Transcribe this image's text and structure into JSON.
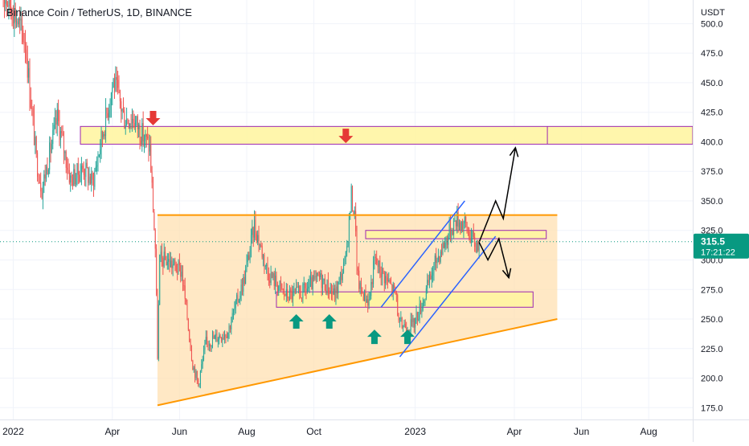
{
  "header": {
    "title": "Binance Coin / TetherUS, 1D, BINANCE"
  },
  "price_axis": {
    "currency": "USDT",
    "ticks": [
      "500.0",
      "475.0",
      "450.0",
      "425.0",
      "400.0",
      "375.0",
      "350.0",
      "325.0",
      "300.0",
      "275.0",
      "250.0",
      "225.0",
      "200.0",
      "175.0"
    ]
  },
  "time_axis": {
    "ticks": [
      "2022",
      "Apr",
      "Jun",
      "Aug",
      "Oct",
      "2023",
      "Apr",
      "Jun",
      "Aug"
    ]
  },
  "last_price": {
    "value": "315.5",
    "countdown": "17:21:22"
  },
  "colors": {
    "up": "#26a69a",
    "down": "#ef5350",
    "zone_fill": "#fff59d",
    "zone_border": "#9c27b0",
    "triangle_fill": "#ffe0b2",
    "triangle_line": "#ff9800",
    "channel": "#2962ff",
    "arrow_down": "#e53935",
    "arrow_up": "#089981",
    "price_badge": "#089981"
  },
  "chart_data": {
    "type": "candlestick",
    "title": "Binance Coin / TetherUS, 1D, BINANCE",
    "y_unit": "USDT",
    "ylim": [
      165,
      520
    ],
    "x_range": [
      "2021-12-20",
      "2023-09-10"
    ],
    "last_price": 315.5,
    "series": [
      {
        "name": "Binance Coin / TetherUS",
        "close_keypoints": [
          [
            "2021-12-20",
            530
          ],
          [
            "2022-01-01",
            512
          ],
          [
            "2022-01-12",
            485
          ],
          [
            "2022-01-22",
            385
          ],
          [
            "2022-01-27",
            360
          ],
          [
            "2022-02-10",
            420
          ],
          [
            "2022-02-22",
            368
          ],
          [
            "2022-03-06",
            378
          ],
          [
            "2022-03-14",
            365
          ],
          [
            "2022-04-02",
            452
          ],
          [
            "2022-04-12",
            420
          ],
          [
            "2022-04-20",
            420
          ],
          [
            "2022-05-05",
            395
          ],
          [
            "2022-05-10",
            310
          ],
          [
            "2022-05-12",
            220
          ],
          [
            "2022-05-14",
            300
          ],
          [
            "2022-05-20",
            300
          ],
          [
            "2022-06-03",
            290
          ],
          [
            "2022-06-13",
            212
          ],
          [
            "2022-06-18",
            195
          ],
          [
            "2022-06-25",
            230
          ],
          [
            "2022-07-15",
            240
          ],
          [
            "2022-07-30",
            285
          ],
          [
            "2022-08-08",
            330
          ],
          [
            "2022-08-20",
            290
          ],
          [
            "2022-09-06",
            270
          ],
          [
            "2022-09-20",
            272
          ],
          [
            "2022-10-06",
            285
          ],
          [
            "2022-10-20",
            270
          ],
          [
            "2022-10-30",
            300
          ],
          [
            "2022-11-04",
            355
          ],
          [
            "2022-11-08",
            330
          ],
          [
            "2022-11-09",
            290
          ],
          [
            "2022-11-12",
            275
          ],
          [
            "2022-11-20",
            265
          ],
          [
            "2022-11-25",
            300
          ],
          [
            "2022-12-05",
            285
          ],
          [
            "2022-12-15",
            270
          ],
          [
            "2022-12-17",
            245
          ],
          [
            "2022-12-30",
            245
          ],
          [
            "2023-01-08",
            265
          ],
          [
            "2023-01-20",
            300
          ],
          [
            "2023-02-07",
            335
          ],
          [
            "2023-02-15",
            330
          ],
          [
            "2023-02-25",
            312
          ],
          [
            "2023-02-28",
            315.5
          ]
        ]
      }
    ],
    "annotations": {
      "resistance_zone": [
        398,
        413
      ],
      "inner_zone": [
        318,
        325
      ],
      "support_zone": [
        260,
        273
      ],
      "triangle_top": 338,
      "triangle_bottom_line": [
        [
          "2022-05-12",
          177
        ],
        [
          "2023-05-10",
          250
        ]
      ],
      "blue_channel": [
        [
          [
            "2022-12-01",
            260
          ],
          [
            "2023-02-15",
            350
          ]
        ],
        [
          [
            "2022-12-18",
            218
          ],
          [
            "2023-03-15",
            320
          ]
        ]
      ],
      "projection_up": [
        [
          "2023-02-28",
          315
        ],
        [
          "2023-03-15",
          350
        ],
        [
          "2023-03-22",
          335
        ],
        [
          "2023-04-02",
          395
        ]
      ],
      "projection_down": [
        [
          "2023-02-28",
          315
        ],
        [
          "2023-03-08",
          300
        ],
        [
          "2023-03-18",
          318
        ],
        [
          "2023-03-27",
          285
        ]
      ],
      "red_down_arrows": [
        [
          "2022-05-08",
          420
        ],
        [
          "2022-10-30",
          405
        ]
      ],
      "green_up_arrows": [
        [
          "2022-09-15",
          248
        ],
        [
          "2022-10-15",
          248
        ],
        [
          "2022-11-25",
          235
        ],
        [
          "2022-12-25",
          235
        ]
      ]
    }
  }
}
